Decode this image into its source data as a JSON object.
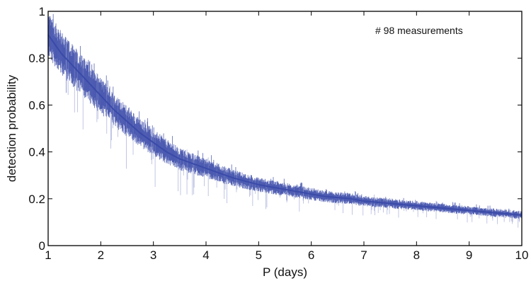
{
  "chart_data": {
    "type": "line",
    "title": "",
    "xlabel": "P (days)",
    "ylabel": "detection probability",
    "xlim": [
      1,
      10
    ],
    "ylim": [
      0,
      1
    ],
    "x_ticks": [
      1,
      2,
      3,
      4,
      5,
      6,
      7,
      8,
      9,
      10
    ],
    "y_ticks": [
      0,
      0.2,
      0.4,
      0.6,
      0.8,
      1
    ],
    "y_tick_labels": [
      "0",
      "0.2",
      "0.4",
      "0.6",
      "0.8",
      "1"
    ],
    "grid": false,
    "annotation": "# 98 measurements",
    "line_color": "#3a4aa8",
    "series": [
      {
        "x": [
          1.0,
          1.25,
          1.5,
          1.75,
          2.0,
          2.25,
          2.5,
          2.75,
          3.0,
          3.25,
          3.5,
          3.75,
          4.0,
          4.25,
          4.5,
          4.75,
          5.0,
          5.25,
          5.5,
          5.75,
          6.0,
          6.25,
          6.5,
          6.75,
          7.0,
          7.25,
          7.5,
          7.75,
          8.0,
          8.25,
          8.5,
          8.75,
          9.0,
          9.25,
          9.5,
          9.75,
          10.0
        ],
        "center": [
          0.9,
          0.82,
          0.76,
          0.7,
          0.64,
          0.58,
          0.53,
          0.48,
          0.44,
          0.4,
          0.37,
          0.35,
          0.33,
          0.31,
          0.29,
          0.275,
          0.26,
          0.25,
          0.24,
          0.23,
          0.22,
          0.21,
          0.205,
          0.2,
          0.19,
          0.185,
          0.18,
          0.175,
          0.17,
          0.165,
          0.16,
          0.155,
          0.15,
          0.145,
          0.14,
          0.135,
          0.13
        ],
        "spread": [
          0.08,
          0.08,
          0.075,
          0.07,
          0.065,
          0.06,
          0.055,
          0.05,
          0.048,
          0.045,
          0.04,
          0.038,
          0.035,
          0.033,
          0.03,
          0.028,
          0.026,
          0.025,
          0.024,
          0.023,
          0.022,
          0.021,
          0.02,
          0.02,
          0.019,
          0.018,
          0.018,
          0.017,
          0.017,
          0.016,
          0.016,
          0.016,
          0.015,
          0.015,
          0.015,
          0.015,
          0.015
        ]
      }
    ]
  }
}
